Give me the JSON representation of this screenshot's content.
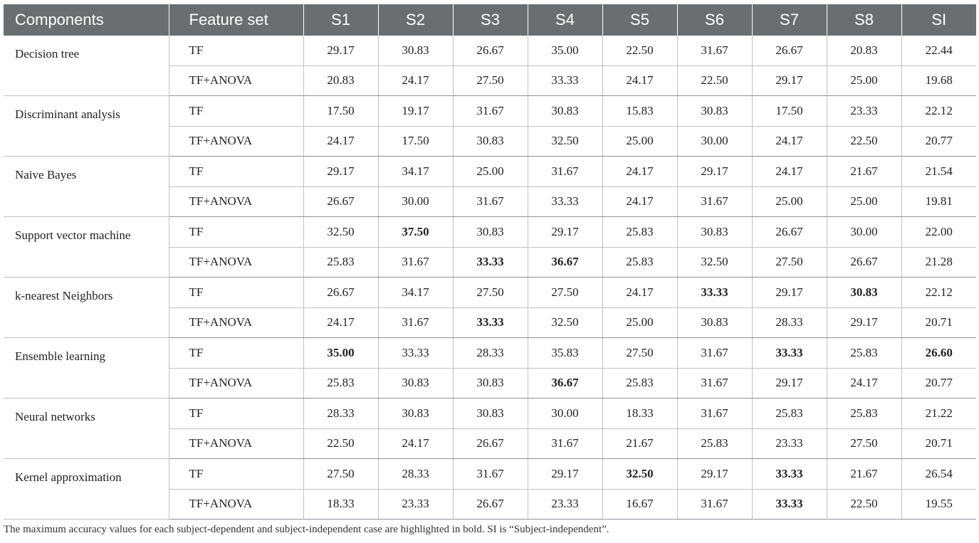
{
  "table": {
    "headers": [
      "Components",
      "Feature set",
      "S1",
      "S2",
      "S3",
      "S4",
      "S5",
      "S6",
      "S7",
      "S8",
      "SI"
    ],
    "groups": [
      {
        "component": "Decision tree",
        "rows": [
          {
            "feature_set": "TF",
            "values": [
              "29.17",
              "30.83",
              "26.67",
              "35.00",
              "22.50",
              "31.67",
              "26.67",
              "20.83",
              "22.44"
            ],
            "bold": []
          },
          {
            "feature_set": "TF+ANOVA",
            "values": [
              "20.83",
              "24.17",
              "27.50",
              "33.33",
              "24.17",
              "22.50",
              "29.17",
              "25.00",
              "19.68"
            ],
            "bold": []
          }
        ]
      },
      {
        "component": "Discriminant analysis",
        "rows": [
          {
            "feature_set": "TF",
            "values": [
              "17.50",
              "19.17",
              "31.67",
              "30.83",
              "15.83",
              "30.83",
              "17.50",
              "23.33",
              "22.12"
            ],
            "bold": []
          },
          {
            "feature_set": "TF+ANOVA",
            "values": [
              "24.17",
              "17.50",
              "30.83",
              "32.50",
              "25.00",
              "30.00",
              "24.17",
              "22.50",
              "20.77"
            ],
            "bold": []
          }
        ]
      },
      {
        "component": "Naive Bayes",
        "rows": [
          {
            "feature_set": "TF",
            "values": [
              "29.17",
              "34.17",
              "25.00",
              "31.67",
              "24.17",
              "29.17",
              "24.17",
              "21.67",
              "21.54"
            ],
            "bold": []
          },
          {
            "feature_set": "TF+ANOVA",
            "values": [
              "26.67",
              "30.00",
              "31.67",
              "33.33",
              "24.17",
              "31.67",
              "25.00",
              "25.00",
              "19.81"
            ],
            "bold": []
          }
        ]
      },
      {
        "component": "Support vector machine",
        "rows": [
          {
            "feature_set": "TF",
            "values": [
              "32.50",
              "37.50",
              "30.83",
              "29.17",
              "25.83",
              "30.83",
              "26.67",
              "30.00",
              "22.00"
            ],
            "bold": [
              1
            ]
          },
          {
            "feature_set": "TF+ANOVA",
            "values": [
              "25.83",
              "31.67",
              "33.33",
              "36.67",
              "25.83",
              "32.50",
              "27.50",
              "26.67",
              "21.28"
            ],
            "bold": [
              2,
              3
            ]
          }
        ]
      },
      {
        "component": "k-nearest Neighbors",
        "rows": [
          {
            "feature_set": "TF",
            "values": [
              "26.67",
              "34.17",
              "27.50",
              "27.50",
              "24.17",
              "33.33",
              "29.17",
              "30.83",
              "22.12"
            ],
            "bold": [
              5,
              7
            ]
          },
          {
            "feature_set": "TF+ANOVA",
            "values": [
              "24.17",
              "31.67",
              "33.33",
              "32.50",
              "25.00",
              "30.83",
              "28.33",
              "29.17",
              "20.71"
            ],
            "bold": [
              2
            ]
          }
        ]
      },
      {
        "component": "Ensemble learning",
        "rows": [
          {
            "feature_set": "TF",
            "values": [
              "35.00",
              "33.33",
              "28.33",
              "35.83",
              "27.50",
              "31.67",
              "33.33",
              "25.83",
              "26.60"
            ],
            "bold": [
              0,
              6,
              8
            ]
          },
          {
            "feature_set": "TF+ANOVA",
            "values": [
              "25.83",
              "30.83",
              "30.83",
              "36.67",
              "25.83",
              "31.67",
              "29.17",
              "24.17",
              "20.77"
            ],
            "bold": [
              3
            ]
          }
        ]
      },
      {
        "component": "Neural networks",
        "rows": [
          {
            "feature_set": "TF",
            "values": [
              "28.33",
              "30.83",
              "30.83",
              "30.00",
              "18.33",
              "31.67",
              "25.83",
              "25.83",
              "21.22"
            ],
            "bold": []
          },
          {
            "feature_set": "TF+ANOVA",
            "values": [
              "22.50",
              "24.17",
              "26.67",
              "31.67",
              "21.67",
              "25.83",
              "23.33",
              "27.50",
              "20.71"
            ],
            "bold": []
          }
        ]
      },
      {
        "component": "Kernel approximation",
        "rows": [
          {
            "feature_set": "TF",
            "values": [
              "27.50",
              "28.33",
              "31.67",
              "29.17",
              "32.50",
              "29.17",
              "33.33",
              "21.67",
              "26.54"
            ],
            "bold": [
              4,
              6
            ]
          },
          {
            "feature_set": "TF+ANOVA",
            "values": [
              "18.33",
              "23.33",
              "26.67",
              "23.33",
              "16.67",
              "31.67",
              "33.33",
              "22.50",
              "19.55"
            ],
            "bold": [
              6
            ]
          }
        ]
      }
    ]
  },
  "footnote": "The maximum accuracy values for each subject-dependent and subject-independent case are highlighted in bold. SI is “Subject-independent”."
}
